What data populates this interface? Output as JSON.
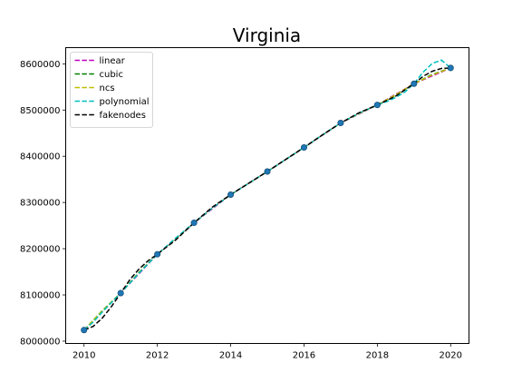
{
  "chart_data": {
    "type": "line",
    "title": "Virginia",
    "xlabel": "",
    "ylabel": "",
    "xlim": [
      2009.5,
      2020.5
    ],
    "ylim": [
      7995000,
      8635000
    ],
    "xticks": [
      2010,
      2012,
      2014,
      2016,
      2018,
      2020
    ],
    "xtick_labels": [
      "2010",
      "2012",
      "2014",
      "2016",
      "2018",
      "2020"
    ],
    "yticks": [
      8000000,
      8100000,
      8200000,
      8300000,
      8400000,
      8500000,
      8600000
    ],
    "ytick_labels": [
      "8000000",
      "8100000",
      "8200000",
      "8300000",
      "8400000",
      "8500000",
      "8600000"
    ],
    "grid": false,
    "legend_position": "top-left",
    "data_points": {
      "x": [
        2010,
        2011,
        2012,
        2013,
        2014,
        2015,
        2016,
        2017,
        2018,
        2019,
        2020
      ],
      "y": [
        8024000,
        8104000,
        8188000,
        8256000,
        8317000,
        8367000,
        8419000,
        8472000,
        8511000,
        8557000,
        8591000
      ],
      "color": "#1f77b4"
    },
    "series": [
      {
        "name": "linear",
        "color": "#bf00bf",
        "x": [
          2010,
          2011,
          2012,
          2013,
          2014,
          2015,
          2016,
          2017,
          2018,
          2019,
          2020
        ],
        "y": [
          8024000,
          8104000,
          8188000,
          8256000,
          8317000,
          8367000,
          8419000,
          8472000,
          8511000,
          8557000,
          8591000
        ]
      },
      {
        "name": "cubic",
        "color": "#008000",
        "x": [
          2010,
          2010.5,
          2011,
          2011.5,
          2012,
          2012.5,
          2013,
          2013.5,
          2014,
          2014.5,
          2015,
          2015.5,
          2016,
          2016.5,
          2017,
          2017.5,
          2018,
          2018.5,
          2019,
          2019.5,
          2020
        ],
        "y": [
          8024000,
          8066000,
          8104000,
          8149000,
          8188000,
          8222000,
          8256000,
          8288000,
          8317000,
          8342000,
          8367000,
          8393000,
          8419000,
          8446000,
          8472000,
          8493000,
          8511000,
          8532000,
          8557000,
          8577000,
          8591000
        ]
      },
      {
        "name": "ncs",
        "color": "#bfbf00",
        "x": [
          2010,
          2010.5,
          2011,
          2011.5,
          2012,
          2012.5,
          2013,
          2013.5,
          2014,
          2014.5,
          2015,
          2015.5,
          2016,
          2016.5,
          2017,
          2017.5,
          2018,
          2018.5,
          2019,
          2019.5,
          2020
        ],
        "y": [
          8024000,
          8065000,
          8104000,
          8148000,
          8188000,
          8222000,
          8256000,
          8288000,
          8317000,
          8342000,
          8367000,
          8393000,
          8419000,
          8446000,
          8472000,
          8492000,
          8511000,
          8533000,
          8557000,
          8576000,
          8591000
        ]
      },
      {
        "name": "polynomial",
        "color": "#00bfbf",
        "x": [
          2010,
          2010.25,
          2010.5,
          2011,
          2011.5,
          2012,
          2012.5,
          2013,
          2013.5,
          2014,
          2014.5,
          2015,
          2015.5,
          2016,
          2016.5,
          2017,
          2017.5,
          2018,
          2018.25,
          2018.5,
          2018.75,
          2019,
          2019.25,
          2019.5,
          2019.75,
          2020
        ],
        "y": [
          8024000,
          8041000,
          8063000,
          8104000,
          8147000,
          8188000,
          8223000,
          8256000,
          8288000,
          8317000,
          8342000,
          8367000,
          8393000,
          8419000,
          8446000,
          8472000,
          8493000,
          8511000,
          8518000,
          8527000,
          8539000,
          8557000,
          8582000,
          8601000,
          8608000,
          8591000
        ]
      },
      {
        "name": "fakenodes",
        "color": "#000000",
        "x": [
          2010,
          2010.25,
          2010.5,
          2010.75,
          2011,
          2011.25,
          2011.5,
          2011.75,
          2012,
          2012.5,
          2013,
          2013.5,
          2014,
          2014.5,
          2015,
          2015.5,
          2016,
          2016.5,
          2017,
          2017.5,
          2018,
          2018.5,
          2019,
          2019.25,
          2019.5,
          2019.75,
          2020
        ],
        "y": [
          8024000,
          8032000,
          8050000,
          8075000,
          8104000,
          8133000,
          8156000,
          8174000,
          8188000,
          8219000,
          8256000,
          8290000,
          8317000,
          8342000,
          8367000,
          8393000,
          8419000,
          8446000,
          8472000,
          8494000,
          8511000,
          8530000,
          8557000,
          8573000,
          8584000,
          8590000,
          8591000
        ]
      }
    ]
  }
}
